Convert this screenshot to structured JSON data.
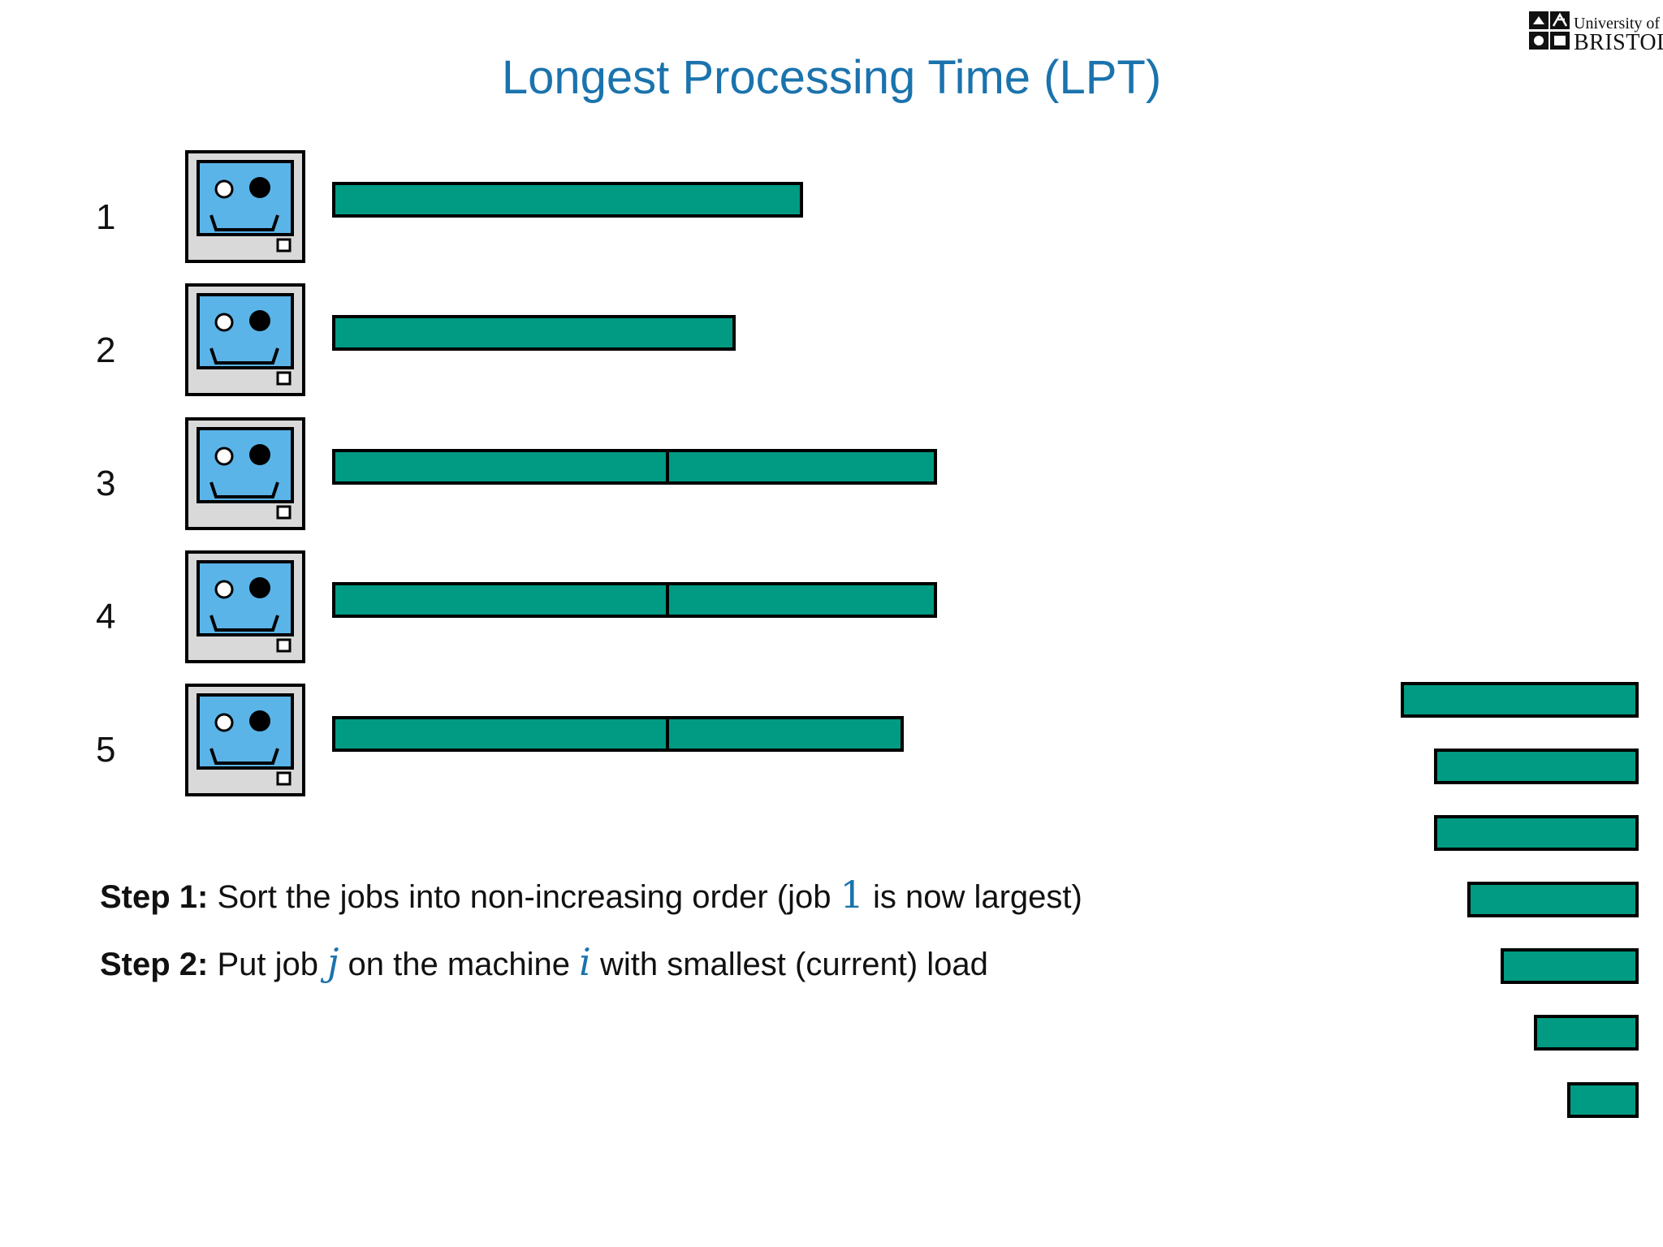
{
  "title": "Longest Processing Time (LPT)",
  "logo": {
    "line1": "University of",
    "line2": "BRISTOL"
  },
  "machines": [
    {
      "label": "1",
      "jobs": [
        1
      ]
    },
    {
      "label": "2",
      "jobs": [
        2
      ]
    },
    {
      "label": "3",
      "jobs": [
        3,
        7
      ]
    },
    {
      "label": "4",
      "jobs": [
        4,
        6
      ]
    },
    {
      "label": "5",
      "jobs": [
        5,
        8
      ]
    }
  ],
  "remaining_jobs": [
    9,
    10,
    11,
    12,
    13,
    14,
    15
  ],
  "steps": [
    {
      "label": "Step 1:",
      "text_before": " Sort the jobs into non-increasing order (job ",
      "math1": "1",
      "text_after": " is now largest)"
    },
    {
      "label": "Step 2:",
      "text_before": " Put job ",
      "math1": "j",
      "text_middle": " on the machine ",
      "math2": "i",
      "text_after": " with smallest (current) load"
    }
  ],
  "colors": {
    "title": "#1a73ad",
    "job_fill": "#009b82",
    "screen": "#5ab4e8",
    "case": "#d9d9d9"
  }
}
